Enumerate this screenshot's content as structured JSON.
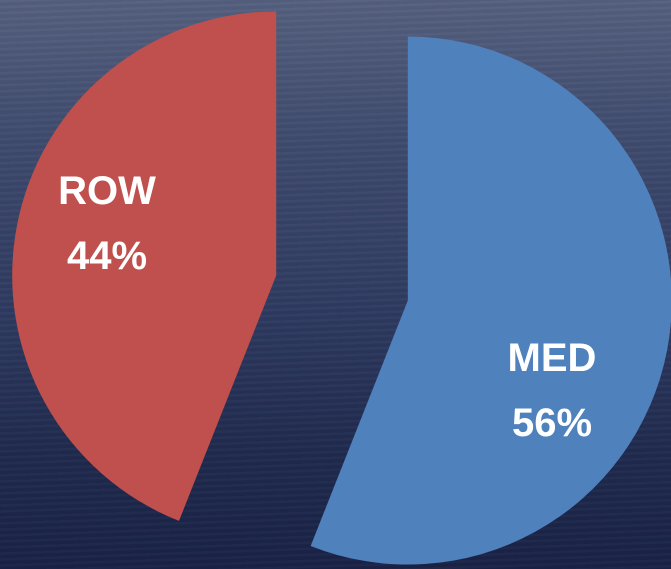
{
  "chart_data": {
    "type": "pie",
    "categories": [
      "MED",
      "ROW"
    ],
    "values": [
      56,
      44
    ],
    "value_labels": [
      "56%",
      "44%"
    ],
    "colors": [
      "#4f81bd",
      "#c0504d"
    ]
  }
}
